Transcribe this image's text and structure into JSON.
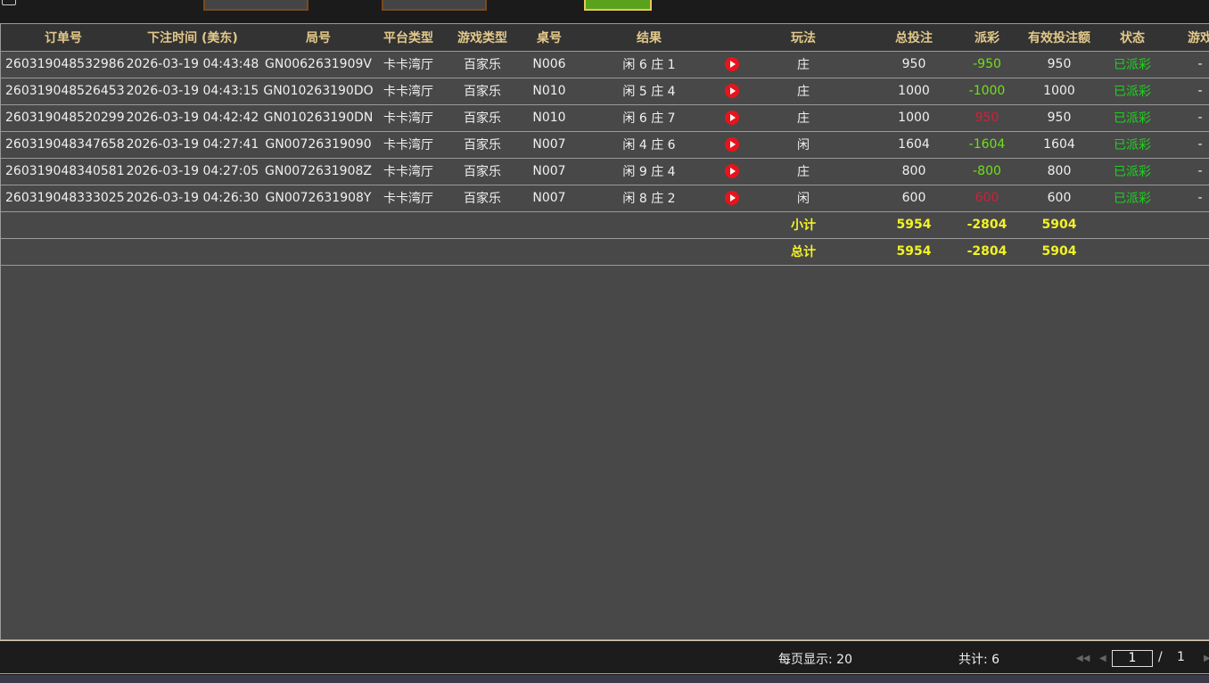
{
  "table": {
    "headers": [
      "订单号",
      "下注时间 (美东)",
      "局号",
      "平台类型",
      "游戏类型",
      "桌号",
      "结果",
      "",
      "玩法",
      "总投注",
      "派彩",
      "有效投注额",
      "状态",
      "游戏"
    ],
    "rows": [
      {
        "order": "260319048532986",
        "time": "2026-03-19 04:43:48",
        "round": "GN0062631909V",
        "platform": "卡卡湾厅",
        "game": "百家乐",
        "table": "N006",
        "result": "闲 6 庄 1",
        "play": "庄",
        "bet": "950",
        "payout": "-950",
        "payout_sign": "neg",
        "valid": "950",
        "status": "已派彩",
        "extra": "-"
      },
      {
        "order": "260319048526453",
        "time": "2026-03-19 04:43:15",
        "round": "GN010263190DO",
        "platform": "卡卡湾厅",
        "game": "百家乐",
        "table": "N010",
        "result": "闲 5 庄 4",
        "play": "庄",
        "bet": "1000",
        "payout": "-1000",
        "payout_sign": "neg",
        "valid": "1000",
        "status": "已派彩",
        "extra": "-"
      },
      {
        "order": "260319048520299",
        "time": "2026-03-19 04:42:42",
        "round": "GN010263190DN",
        "platform": "卡卡湾厅",
        "game": "百家乐",
        "table": "N010",
        "result": "闲 6 庄 7",
        "play": "庄",
        "bet": "1000",
        "payout": "950",
        "payout_sign": "pos",
        "valid": "950",
        "status": "已派彩",
        "extra": "-"
      },
      {
        "order": "260319048347658",
        "time": "2026-03-19 04:27:41",
        "round": "GN00726319090",
        "platform": "卡卡湾厅",
        "game": "百家乐",
        "table": "N007",
        "result": "闲 4 庄 6",
        "play": "闲",
        "bet": "1604",
        "payout": "-1604",
        "payout_sign": "neg",
        "valid": "1604",
        "status": "已派彩",
        "extra": "-"
      },
      {
        "order": "260319048340581",
        "time": "2026-03-19 04:27:05",
        "round": "GN0072631908Z",
        "platform": "卡卡湾厅",
        "game": "百家乐",
        "table": "N007",
        "result": "闲 9 庄 4",
        "play": "庄",
        "bet": "800",
        "payout": "-800",
        "payout_sign": "neg",
        "valid": "800",
        "status": "已派彩",
        "extra": "-"
      },
      {
        "order": "260319048333025",
        "time": "2026-03-19 04:26:30",
        "round": "GN0072631908Y",
        "platform": "卡卡湾厅",
        "game": "百家乐",
        "table": "N007",
        "result": "闲 8 庄 2",
        "play": "闲",
        "bet": "600",
        "payout": "600",
        "payout_sign": "pos",
        "valid": "600",
        "status": "已派彩",
        "extra": "-"
      }
    ],
    "subtotal": {
      "label": "小计",
      "bet": "5954",
      "payout": "-2804",
      "valid": "5904"
    },
    "total": {
      "label": "总计",
      "bet": "5954",
      "payout": "-2804",
      "valid": "5904"
    }
  },
  "footer": {
    "per_page": "每页显示: 20",
    "count": "共计: 6",
    "page": "1",
    "sep": "/",
    "pages": "1"
  },
  "colors": {
    "header_text": "#e2c88a",
    "negative": "#6fe01a",
    "positive": "#d0203a",
    "status": "#1ed21e",
    "summary": "#f2f226"
  }
}
